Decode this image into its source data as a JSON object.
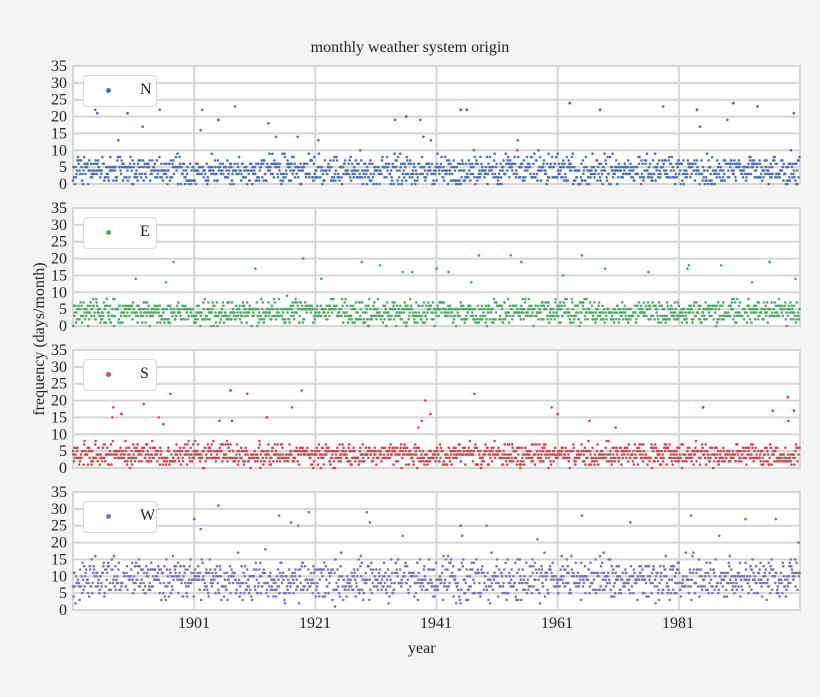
{
  "title": "monthly weather system origin",
  "xlabel": "year",
  "ylabel": "frequency (days/month)",
  "xticks": [
    "1901",
    "1921",
    "1941",
    "1961",
    "1981"
  ],
  "yticks": [
    "0",
    "5",
    "10",
    "15",
    "20",
    "25",
    "30",
    "35"
  ],
  "chart_data": {
    "type": "scatter",
    "title": "monthly weather system origin",
    "xlabel": "year",
    "ylabel": "frequency (days/month)",
    "xlim": [
      1881,
      2001
    ],
    "ylim": [
      0,
      35
    ],
    "x_ticks": [
      1901,
      1921,
      1941,
      1961,
      1981
    ],
    "y_ticks": [
      0,
      5,
      10,
      15,
      20,
      25,
      30,
      35
    ],
    "grid": true,
    "layout": "4 stacked panels sharing x-axis, legend upper-left in each",
    "series": [
      {
        "name": "N",
        "color": "#4c72b0",
        "typical_range": [
          0,
          12
        ],
        "median_approx": 4,
        "notable_points": [
          [
            1885,
            21
          ],
          [
            1890,
            21
          ],
          [
            1905,
            19
          ],
          [
            1936,
            20
          ],
          [
            1945,
            22
          ],
          [
            1946,
            22
          ],
          [
            1963,
            24
          ],
          [
            1968,
            22
          ],
          [
            1984,
            22
          ],
          [
            1990,
            24
          ],
          [
            1994,
            23
          ],
          [
            2000,
            21
          ]
        ]
      },
      {
        "name": "E",
        "color": "#55a868",
        "typical_range": [
          0,
          10
        ],
        "median_approx": 4,
        "notable_points": [
          [
            1919,
            20
          ],
          [
            1922,
            14
          ],
          [
            1941,
            17
          ],
          [
            1943,
            16
          ],
          [
            1948,
            21
          ],
          [
            1955,
            19
          ],
          [
            1965,
            21
          ],
          [
            1976,
            16
          ],
          [
            1996,
            19
          ]
        ]
      },
      {
        "name": "S",
        "color": "#c44e52",
        "typical_range": [
          0,
          10
        ],
        "median_approx": 4,
        "notable_points": [
          [
            1889,
            16
          ],
          [
            1907,
            23
          ],
          [
            1913,
            15
          ],
          [
            1940,
            16
          ],
          [
            1961,
            16
          ],
          [
            1985,
            18
          ],
          [
            1999,
            21
          ],
          [
            2000,
            17
          ]
        ]
      },
      {
        "name": "W",
        "color": "#8172b2",
        "typical_range": [
          0,
          20
        ],
        "median_approx": 9,
        "notable_points": [
          [
            1901,
            27
          ],
          [
            1905,
            31
          ],
          [
            1915,
            28
          ],
          [
            1917,
            26
          ],
          [
            1930,
            26
          ],
          [
            1945,
            25
          ],
          [
            1965,
            28
          ],
          [
            1973,
            26
          ],
          [
            1983,
            28
          ],
          [
            1992,
            27
          ],
          [
            1997,
            27
          ]
        ]
      }
    ],
    "points_per_series_approx": 1440,
    "data_frequency": "monthly"
  },
  "panels": [
    {
      "name": "N",
      "color": "#4c72b0",
      "seed": 11,
      "base": 4,
      "spread": 4.5,
      "hi": 24
    },
    {
      "name": "E",
      "color": "#55a868",
      "seed": 23,
      "base": 4,
      "spread": 3.5,
      "hi": 21
    },
    {
      "name": "S",
      "color": "#c44e52",
      "seed": 37,
      "base": 4,
      "spread": 3.2,
      "hi": 23
    },
    {
      "name": "W",
      "color": "#8172b2",
      "seed": 51,
      "base": 9,
      "spread": 6,
      "hi": 31
    }
  ]
}
